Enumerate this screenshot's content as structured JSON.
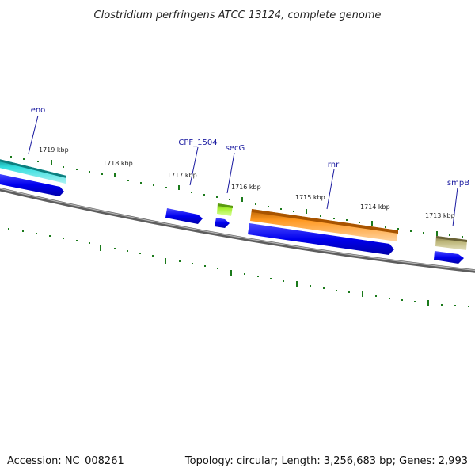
{
  "title": "Clostridium perfringens ATCC 13124, complete genome",
  "footer": {
    "accession": "Accession: NC_008261",
    "summary": "Topology: circular; Length: 3,256,683 bp; Genes: 2,993"
  },
  "ticks": [
    {
      "label": "1719 kbp"
    },
    {
      "label": "1718 kbp"
    },
    {
      "label": "1717 kbp"
    },
    {
      "label": "1716 kbp"
    },
    {
      "label": "1715 kbp"
    },
    {
      "label": "1714 kbp"
    },
    {
      "label": "1713 kbp"
    }
  ],
  "genes": [
    {
      "name": "eno"
    },
    {
      "name": "CPF_1504"
    },
    {
      "name": "secG"
    },
    {
      "name": "rnr"
    },
    {
      "name": "smpB"
    }
  ],
  "colors": {
    "cds_blue": "#0000ee",
    "eno": "#22cccc",
    "secG": "#99ee22",
    "rnr": "#ff9922",
    "smpB": "#bbb477",
    "backbone": "#808080",
    "tick_green": "#1b7a1b",
    "label_blue": "#1a1aa0"
  }
}
